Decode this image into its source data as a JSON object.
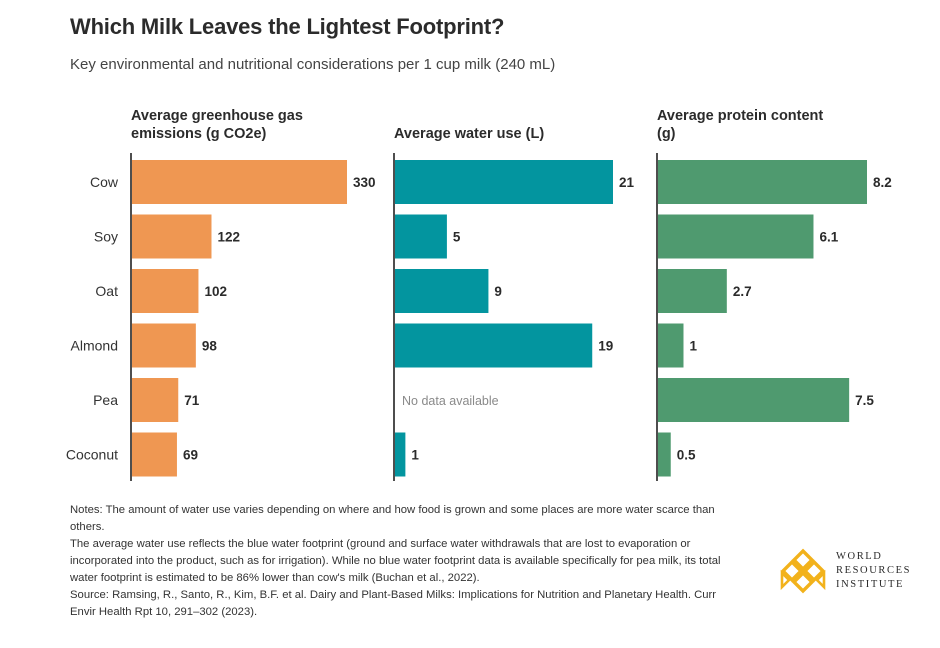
{
  "title": "Which Milk Leaves the Lightest Footprint?",
  "subtitle": "Key environmental and nutritional considerations per 1 cup milk (240 mL)",
  "colors": {
    "emissions": "#ef9752",
    "water": "#03959f",
    "protein": "#4f9a6f"
  },
  "chart_data": [
    {
      "type": "bar",
      "orientation": "horizontal",
      "title": "Average greenhouse gas emissions (g CO2e)",
      "categories": [
        "Cow",
        "Soy",
        "Oat",
        "Almond",
        "Pea",
        "Coconut"
      ],
      "values": [
        330,
        122,
        102,
        98,
        71,
        69
      ],
      "labels": [
        "330",
        "122",
        "102",
        "98",
        "71",
        "69"
      ],
      "xlim": [
        0,
        330
      ]
    },
    {
      "type": "bar",
      "orientation": "horizontal",
      "title": "Average water use (L)",
      "categories": [
        "Cow",
        "Soy",
        "Oat",
        "Almond",
        "Pea",
        "Coconut"
      ],
      "values": [
        21,
        5,
        9,
        19,
        null,
        1
      ],
      "labels": [
        "21",
        "5",
        "9",
        "19",
        "No data available",
        "1"
      ],
      "xlim": [
        0,
        21
      ]
    },
    {
      "type": "bar",
      "orientation": "horizontal",
      "title": "Average protein content (g)",
      "categories": [
        "Cow",
        "Soy",
        "Oat",
        "Almond",
        "Pea",
        "Coconut"
      ],
      "values": [
        8.2,
        6.1,
        2.7,
        1,
        7.5,
        0.5
      ],
      "labels": [
        "8.2",
        "6.1",
        "2.7",
        "1",
        "7.5",
        "0.5"
      ],
      "xlim": [
        0,
        8.2
      ]
    }
  ],
  "notes": [
    "Notes: The amount of water use varies depending on where and how food is grown and some places are more water scarce than others.",
    "The average water use reflects the blue water footprint (ground and surface water withdrawals that are lost to evaporation or incorporated into the product, such as for irrigation). While no blue water footprint data is available specifically for pea milk, its total water footprint is estimated to be 86% lower than cow's milk (Buchan et al., 2022).",
    "Source: Ramsing, R., Santo, R., Kim, B.F. et al. Dairy and Plant-Based Milks: Implications for Nutrition and Planetary Health. Curr Envir Health Rpt 10, 291–302 (2023)."
  ],
  "logo": {
    "line1": "WORLD",
    "line2": "RESOURCES",
    "line3": "INSTITUTE"
  }
}
